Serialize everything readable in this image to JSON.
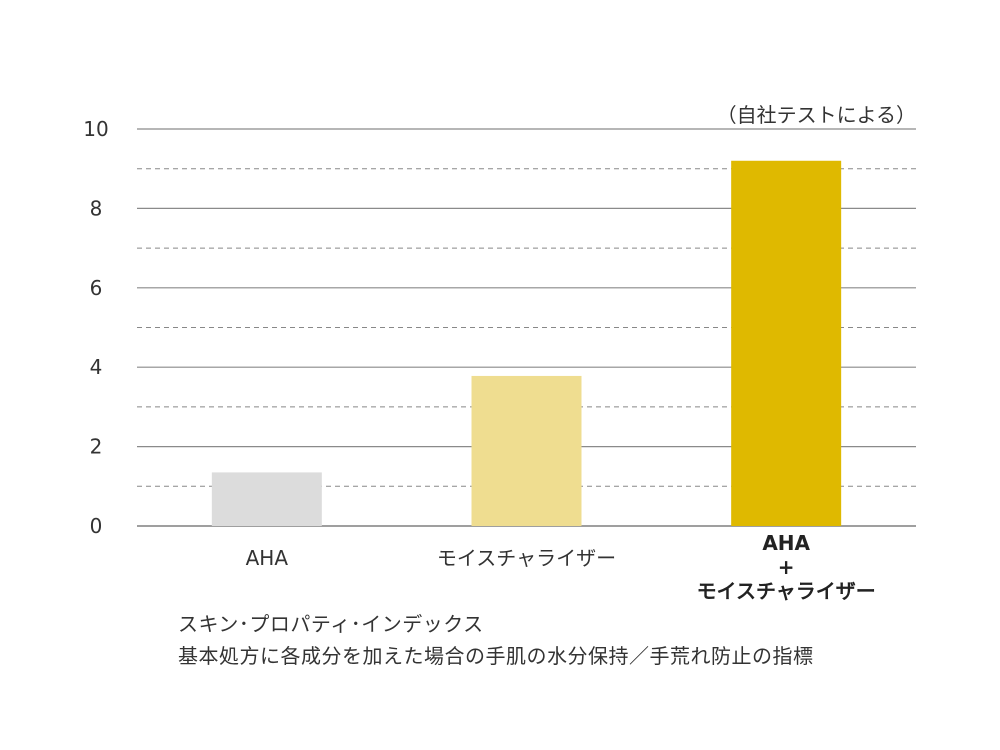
{
  "chart_data": {
    "type": "bar",
    "note": "（自社テストによる）",
    "ylim": [
      0,
      10
    ],
    "yticks": [
      0,
      2,
      4,
      6,
      8,
      10
    ],
    "minor_gridlines": [
      1,
      3,
      5,
      7,
      9
    ],
    "grid": true,
    "categories": [
      {
        "lines": [
          "AHA"
        ],
        "bold": false
      },
      {
        "lines": [
          "モイスチャライザー"
        ],
        "bold": false
      },
      {
        "lines": [
          "AHA",
          "+",
          "モイスチャライザー"
        ],
        "bold": true
      }
    ],
    "values": [
      1.35,
      3.78,
      9.2
    ],
    "colors": [
      "#dcdcdc",
      "#efdd90",
      "#dfb900"
    ]
  },
  "caption": {
    "line1": "スキン･プロパティ･インデックス",
    "line2": "基本処方に各成分を加えた場合の手肌の水分保持／手荒れ防止の指標"
  }
}
